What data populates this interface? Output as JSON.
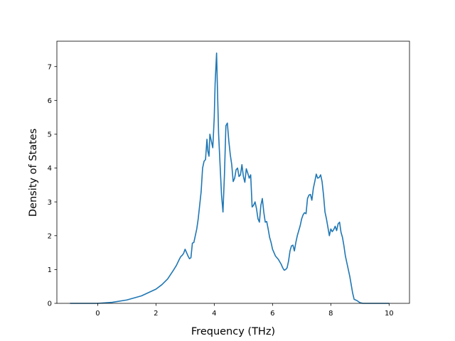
{
  "chart_data": {
    "type": "line",
    "title": "",
    "xlabel": "Frequency (THz)",
    "ylabel": "Density of States",
    "xlim": [
      -1.4,
      10.7
    ],
    "ylim": [
      0,
      7.75
    ],
    "xticks": [
      0,
      2,
      4,
      6,
      8,
      10
    ],
    "yticks": [
      0,
      1,
      2,
      3,
      4,
      5,
      6,
      7
    ],
    "grid": false,
    "legend": "none",
    "series": [
      {
        "color": "#1f77b4",
        "x": [
          -0.95,
          -0.5,
          0.0,
          0.5,
          1.0,
          1.5,
          2.0,
          2.2,
          2.4,
          2.6,
          2.7,
          2.8,
          2.85,
          2.9,
          2.95,
          3.0,
          3.1,
          3.15,
          3.2,
          3.25,
          3.3,
          3.35,
          3.4,
          3.45,
          3.5,
          3.55,
          3.6,
          3.65,
          3.7,
          3.75,
          3.78,
          3.82,
          3.85,
          3.9,
          3.95,
          4.0,
          4.03,
          4.08,
          4.12,
          4.15,
          4.2,
          4.25,
          4.3,
          4.35,
          4.4,
          4.45,
          4.5,
          4.55,
          4.6,
          4.65,
          4.7,
          4.75,
          4.8,
          4.85,
          4.9,
          4.95,
          5.0,
          5.05,
          5.1,
          5.15,
          5.2,
          5.25,
          5.3,
          5.35,
          5.4,
          5.45,
          5.5,
          5.55,
          5.6,
          5.65,
          5.7,
          5.75,
          5.8,
          5.85,
          5.9,
          5.95,
          6.0,
          6.1,
          6.2,
          6.3,
          6.35,
          6.4,
          6.45,
          6.5,
          6.55,
          6.6,
          6.65,
          6.7,
          6.75,
          6.8,
          6.85,
          6.9,
          6.95,
          7.0,
          7.05,
          7.1,
          7.15,
          7.2,
          7.25,
          7.3,
          7.35,
          7.4,
          7.45,
          7.5,
          7.55,
          7.6,
          7.65,
          7.7,
          7.75,
          7.8,
          7.85,
          7.9,
          7.95,
          8.0,
          8.05,
          8.1,
          8.15,
          8.2,
          8.25,
          8.3,
          8.35,
          8.4,
          8.45,
          8.5,
          8.55,
          8.6,
          8.65,
          8.7,
          8.75,
          8.8,
          8.85,
          8.9,
          8.95,
          9.0,
          9.1,
          9.15,
          9.2,
          9.3,
          9.5,
          10.0
        ],
        "y": [
          0.0,
          0.0,
          0.0,
          0.03,
          0.1,
          0.22,
          0.42,
          0.55,
          0.72,
          0.98,
          1.12,
          1.3,
          1.38,
          1.42,
          1.48,
          1.6,
          1.4,
          1.32,
          1.35,
          1.78,
          1.8,
          2.0,
          2.2,
          2.5,
          2.9,
          3.3,
          4.0,
          4.2,
          4.25,
          4.85,
          4.5,
          4.35,
          5.0,
          4.8,
          4.6,
          5.5,
          6.5,
          7.4,
          6.0,
          5.0,
          4.1,
          3.2,
          2.7,
          3.8,
          5.25,
          5.33,
          4.8,
          4.4,
          4.1,
          3.6,
          3.7,
          3.95,
          4.0,
          3.75,
          3.8,
          4.1,
          3.75,
          3.58,
          3.98,
          3.85,
          3.7,
          3.8,
          2.85,
          2.9,
          3.0,
          2.8,
          2.5,
          2.4,
          2.9,
          3.1,
          2.7,
          2.4,
          2.42,
          2.2,
          1.95,
          1.8,
          1.6,
          1.4,
          1.3,
          1.15,
          1.05,
          0.98,
          1.0,
          1.05,
          1.25,
          1.55,
          1.7,
          1.72,
          1.55,
          1.8,
          2.0,
          2.15,
          2.3,
          2.5,
          2.62,
          2.68,
          2.65,
          3.1,
          3.2,
          3.22,
          3.05,
          3.4,
          3.6,
          3.82,
          3.7,
          3.72,
          3.8,
          3.6,
          3.2,
          2.7,
          2.5,
          2.25,
          2.0,
          2.2,
          2.12,
          2.18,
          2.28,
          2.15,
          2.35,
          2.4,
          2.1,
          1.95,
          1.7,
          1.4,
          1.2,
          1.0,
          0.8,
          0.55,
          0.3,
          0.12,
          0.1,
          0.08,
          0.05,
          0.02,
          0.0,
          0.0,
          0.0,
          0.0,
          0.0,
          0.0
        ]
      }
    ]
  }
}
